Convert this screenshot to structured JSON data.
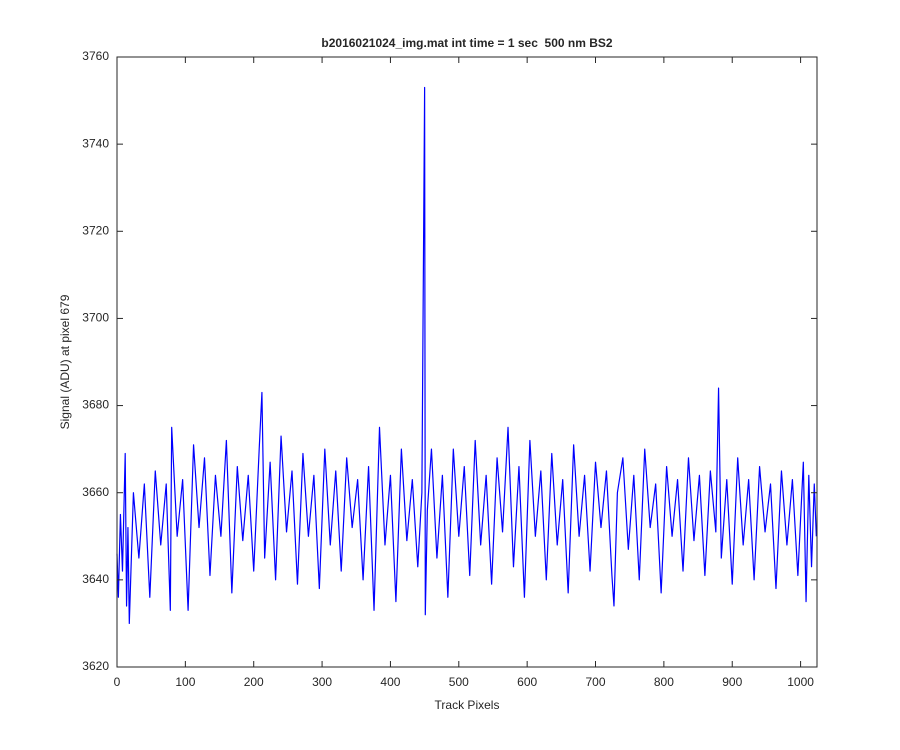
{
  "chart_data": {
    "type": "line",
    "title": "b2016021024_img.mat int time = 1 sec  500 nm BS2",
    "xlabel": "Track Pixels",
    "ylabel": "Signal (ADU) at pixel 679",
    "xlim": [
      0,
      1024
    ],
    "ylim": [
      3620,
      3760
    ],
    "xticks": [
      0,
      100,
      200,
      300,
      400,
      500,
      600,
      700,
      800,
      900,
      1000
    ],
    "yticks": [
      3620,
      3640,
      3660,
      3680,
      3700,
      3720,
      3740,
      3760
    ],
    "x": [
      0,
      2,
      5,
      8,
      12,
      14,
      16,
      18,
      24,
      32,
      40,
      48,
      56,
      64,
      72,
      78,
      80,
      88,
      96,
      104,
      112,
      120,
      128,
      136,
      144,
      152,
      160,
      168,
      176,
      184,
      192,
      200,
      208,
      212,
      216,
      224,
      232,
      240,
      248,
      256,
      264,
      272,
      280,
      288,
      296,
      304,
      312,
      320,
      328,
      336,
      344,
      352,
      360,
      368,
      376,
      384,
      392,
      400,
      408,
      416,
      424,
      432,
      440,
      446,
      450,
      451,
      454,
      460,
      468,
      476,
      484,
      492,
      500,
      508,
      516,
      524,
      532,
      540,
      548,
      556,
      564,
      572,
      580,
      588,
      596,
      604,
      612,
      620,
      628,
      636,
      644,
      652,
      660,
      668,
      676,
      684,
      692,
      700,
      708,
      716,
      724,
      727,
      732,
      740,
      748,
      756,
      764,
      772,
      780,
      788,
      796,
      804,
      812,
      820,
      828,
      836,
      844,
      852,
      860,
      868,
      876,
      880,
      884,
      892,
      900,
      908,
      916,
      924,
      932,
      940,
      948,
      956,
      964,
      972,
      980,
      988,
      996,
      1004,
      1008,
      1012,
      1016,
      1020,
      1023
    ],
    "series": [
      {
        "name": "Signal",
        "color": "#0000ff",
        "values": [
          3646,
          3636,
          3655,
          3642,
          3669,
          3634,
          3652,
          3630,
          3660,
          3645,
          3662,
          3636,
          3665,
          3648,
          3662,
          3633,
          3675,
          3650,
          3663,
          3633,
          3671,
          3652,
          3668,
          3641,
          3664,
          3650,
          3672,
          3637,
          3666,
          3649,
          3664,
          3642,
          3670,
          3683,
          3645,
          3667,
          3640,
          3673,
          3651,
          3665,
          3639,
          3669,
          3650,
          3664,
          3638,
          3670,
          3648,
          3665,
          3642,
          3668,
          3652,
          3663,
          3640,
          3666,
          3633,
          3675,
          3648,
          3664,
          3635,
          3670,
          3649,
          3663,
          3643,
          3660,
          3753,
          3632,
          3656,
          3670,
          3645,
          3664,
          3636,
          3670,
          3650,
          3666,
          3641,
          3672,
          3648,
          3664,
          3639,
          3668,
          3651,
          3675,
          3643,
          3666,
          3636,
          3672,
          3650,
          3665,
          3640,
          3669,
          3648,
          3663,
          3637,
          3671,
          3650,
          3664,
          3642,
          3667,
          3652,
          3665,
          3641,
          3634,
          3660,
          3668,
          3647,
          3664,
          3640,
          3670,
          3652,
          3662,
          3637,
          3666,
          3650,
          3663,
          3642,
          3668,
          3649,
          3664,
          3641,
          3665,
          3651,
          3684,
          3645,
          3663,
          3639,
          3668,
          3648,
          3663,
          3640,
          3666,
          3651,
          3662,
          3638,
          3665,
          3648,
          3663,
          3641,
          3667,
          3635,
          3664,
          3643,
          3662,
          3650
        ]
      }
    ]
  }
}
